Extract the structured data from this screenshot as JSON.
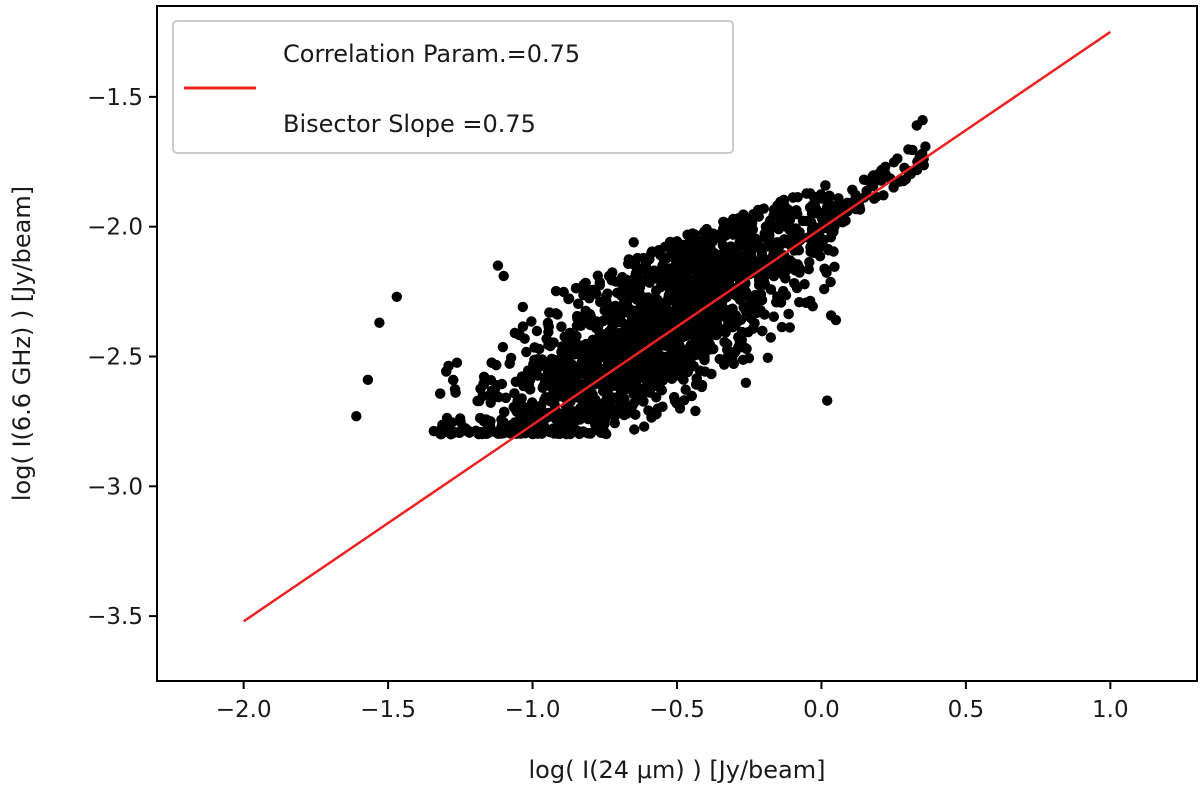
{
  "chart_data": {
    "type": "scatter",
    "xlabel": "log( I(24 μm) ) [Jy/beam]",
    "ylabel": "log( I(6.6 GHz) ) [Jy/beam]",
    "xlim": [
      -2.3,
      1.3
    ],
    "ylim": [
      -3.75,
      -1.15
    ],
    "x_ticks": [
      -2.0,
      -1.5,
      -1.0,
      -0.5,
      0.0,
      0.5,
      1.0
    ],
    "x_tick_labels": [
      "−2.0",
      "−1.5",
      "−1.0",
      "−0.5",
      "0.0",
      "0.5",
      "1.0"
    ],
    "y_ticks": [
      -3.5,
      -3.0,
      -2.5,
      -2.0,
      -1.5
    ],
    "y_tick_labels": [
      "−3.5",
      "−3.0",
      "−2.5",
      "−2.0",
      "−1.5"
    ],
    "grid": false,
    "legend_position": "top-left",
    "fit_line": {
      "label_lines": [
        "Correlation Param.=0.75",
        "Bisector Slope =0.75"
      ],
      "color": "#ee2222",
      "x": [
        -2.0,
        1.0
      ],
      "y": [
        -3.52,
        -1.25
      ]
    },
    "scatter": {
      "color": "#000000",
      "point_count": 2600,
      "x_range": [
        -1.6,
        0.36
      ],
      "y_floor": -2.8,
      "y_ceiling": -1.6,
      "outliers": [
        {
          "x": -1.61,
          "y": -2.73
        },
        {
          "x": -1.57,
          "y": -2.59
        },
        {
          "x": -1.53,
          "y": -2.37
        },
        {
          "x": -1.47,
          "y": -2.27
        },
        {
          "x": -1.12,
          "y": -2.15
        },
        {
          "x": -1.1,
          "y": -2.19
        },
        {
          "x": -0.65,
          "y": -2.06
        },
        {
          "x": 0.02,
          "y": -2.67
        },
        {
          "x": 0.05,
          "y": -2.36
        },
        {
          "x": 0.35,
          "y": -1.59
        },
        {
          "x": 0.33,
          "y": -1.61
        }
      ]
    }
  }
}
